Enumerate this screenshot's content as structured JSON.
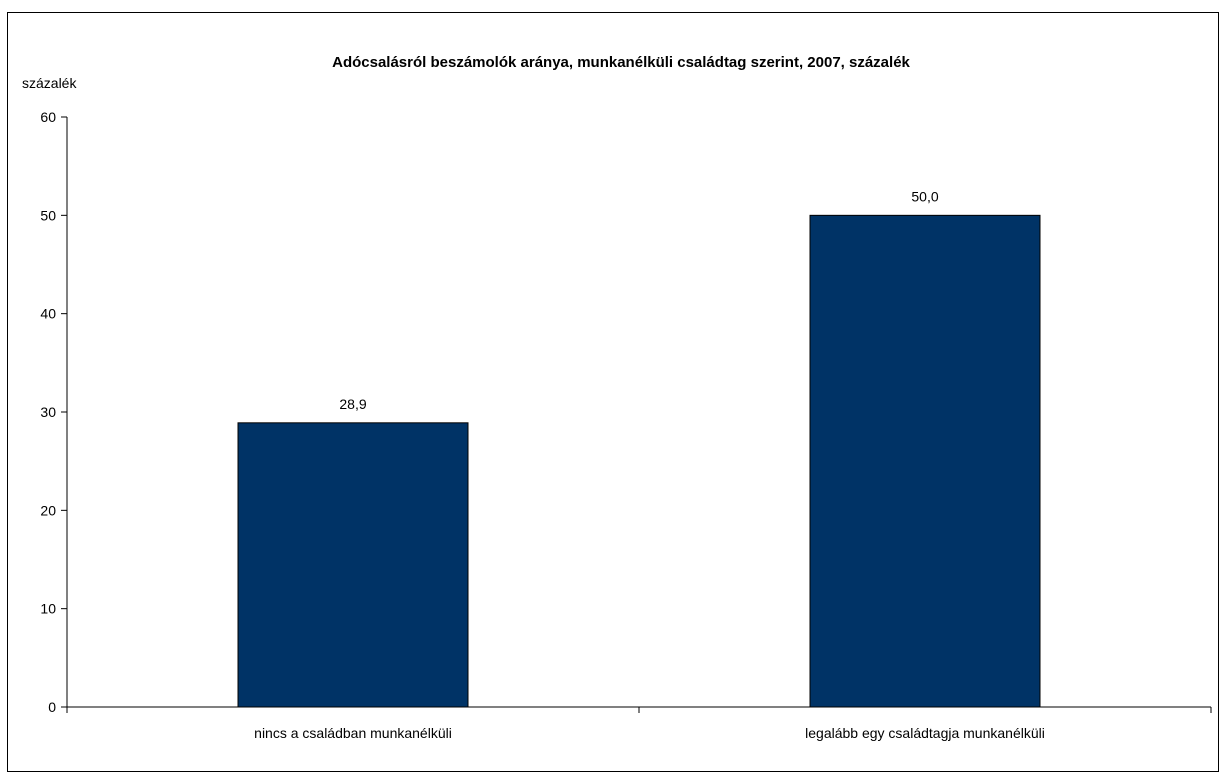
{
  "chart_data": {
    "type": "bar",
    "title": "Adócsalásról beszámolók aránya, munkanélküli családtag szerint, 2007, százalék",
    "ylabel": "százalék",
    "xlabel": "",
    "categories": [
      "nincs a családban munkanélküli",
      "legalább egy családtagja munkanélküli"
    ],
    "values": [
      28.9,
      50.0
    ],
    "value_labels": [
      "28,9",
      "50,0"
    ],
    "ylim": [
      0,
      60
    ],
    "yticks": [
      0,
      10,
      20,
      30,
      40,
      50,
      60
    ],
    "grid": false,
    "legend": "none",
    "bar_color": "#003366"
  }
}
